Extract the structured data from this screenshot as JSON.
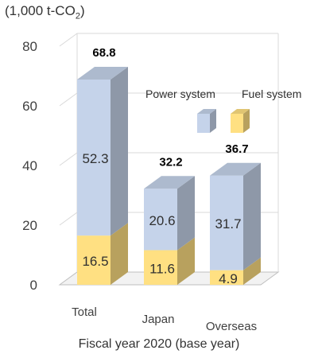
{
  "chart_data": {
    "type": "bar",
    "stacked": true,
    "style": "3d",
    "unit_label": "(1,000 t-CO",
    "unit_sub": "2",
    "unit_suffix": ")",
    "xlabel": "Fiscal year 2020 (base year)",
    "categories": [
      "Total",
      "Japan",
      "Overseas"
    ],
    "series": [
      {
        "name": "Fuel system",
        "values": [
          16.5,
          11.6,
          4.9
        ],
        "color": "#FFE082"
      },
      {
        "name": "Power system",
        "values": [
          52.3,
          20.6,
          31.7
        ],
        "color": "#C5D3EA"
      }
    ],
    "totals": [
      68.8,
      32.2,
      36.7
    ],
    "ylim": [
      0,
      80
    ],
    "yticks": [
      0,
      20,
      40,
      60,
      80
    ],
    "legend_position": "top-right",
    "grid": true
  }
}
